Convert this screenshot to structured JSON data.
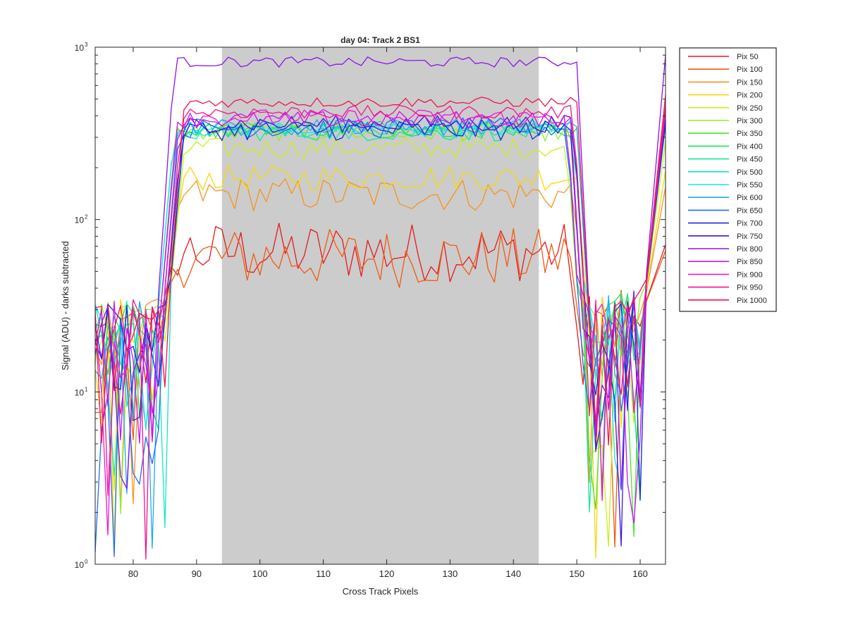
{
  "chart_data": {
    "type": "line",
    "title": "day 04: Track 2  BS1",
    "xlabel": "Cross Track Pixels",
    "ylabel": "Signal (ADU) - darks subtracted",
    "xlim": [
      74,
      164
    ],
    "ylim": [
      1,
      1000
    ],
    "yscale": "log",
    "xticks": [
      80,
      90,
      100,
      110,
      120,
      130,
      140,
      150,
      160
    ],
    "yticks": [
      {
        "value": 1,
        "base": "10",
        "exp": "0"
      },
      {
        "value": 10,
        "base": "10",
        "exp": "1"
      },
      {
        "value": 100,
        "base": "10",
        "exp": "2"
      },
      {
        "value": 1000,
        "base": "10",
        "exp": "3"
      }
    ],
    "shaded_region": {
      "x": [
        94,
        144
      ],
      "color": "#cccccc"
    },
    "legend_position": "outside-right",
    "series": [
      {
        "name": "Pix 50",
        "color": "#e41a1c",
        "level": 65,
        "noise": 0.35
      },
      {
        "name": "Pix 100",
        "color": "#f05a14",
        "level": 60,
        "noise": 0.35
      },
      {
        "name": "Pix 150",
        "color": "#f7931e",
        "level": 140,
        "noise": 0.2
      },
      {
        "name": "Pix 200",
        "color": "#f5d90a",
        "level": 175,
        "noise": 0.15
      },
      {
        "name": "Pix 250",
        "color": "#c8f01a",
        "level": 260,
        "noise": 0.12
      },
      {
        "name": "Pix 300",
        "color": "#8ef024",
        "level": 320,
        "noise": 0.1
      },
      {
        "name": "Pix 350",
        "color": "#46e62a",
        "level": 330,
        "noise": 0.1
      },
      {
        "name": "Pix 400",
        "color": "#14e650",
        "level": 340,
        "noise": 0.1
      },
      {
        "name": "Pix 450",
        "color": "#14e69a",
        "level": 320,
        "noise": 0.1
      },
      {
        "name": "Pix 500",
        "color": "#14e6c8",
        "level": 330,
        "noise": 0.1
      },
      {
        "name": "Pix 550",
        "color": "#14e6f0",
        "level": 340,
        "noise": 0.1
      },
      {
        "name": "Pix 600",
        "color": "#1eaaf0",
        "level": 345,
        "noise": 0.1
      },
      {
        "name": "Pix 650",
        "color": "#1e6ef0",
        "level": 340,
        "noise": 0.12
      },
      {
        "name": "Pix 700",
        "color": "#1e28e6",
        "level": 330,
        "noise": 0.12
      },
      {
        "name": "Pix 750",
        "color": "#3c14dc",
        "level": 360,
        "noise": 0.1
      },
      {
        "name": "Pix 800",
        "color": "#8c14e6",
        "level": 820,
        "noise": 0.06
      },
      {
        "name": "Pix 850",
        "color": "#c814f0",
        "level": 380,
        "noise": 0.1
      },
      {
        "name": "Pix 900",
        "color": "#f014dc",
        "level": 390,
        "noise": 0.1
      },
      {
        "name": "Pix 950",
        "color": "#f0148c",
        "level": 420,
        "noise": 0.08
      },
      {
        "name": "Pix 1000",
        "color": "#f01450",
        "level": 480,
        "noise": 0.06
      }
    ]
  }
}
